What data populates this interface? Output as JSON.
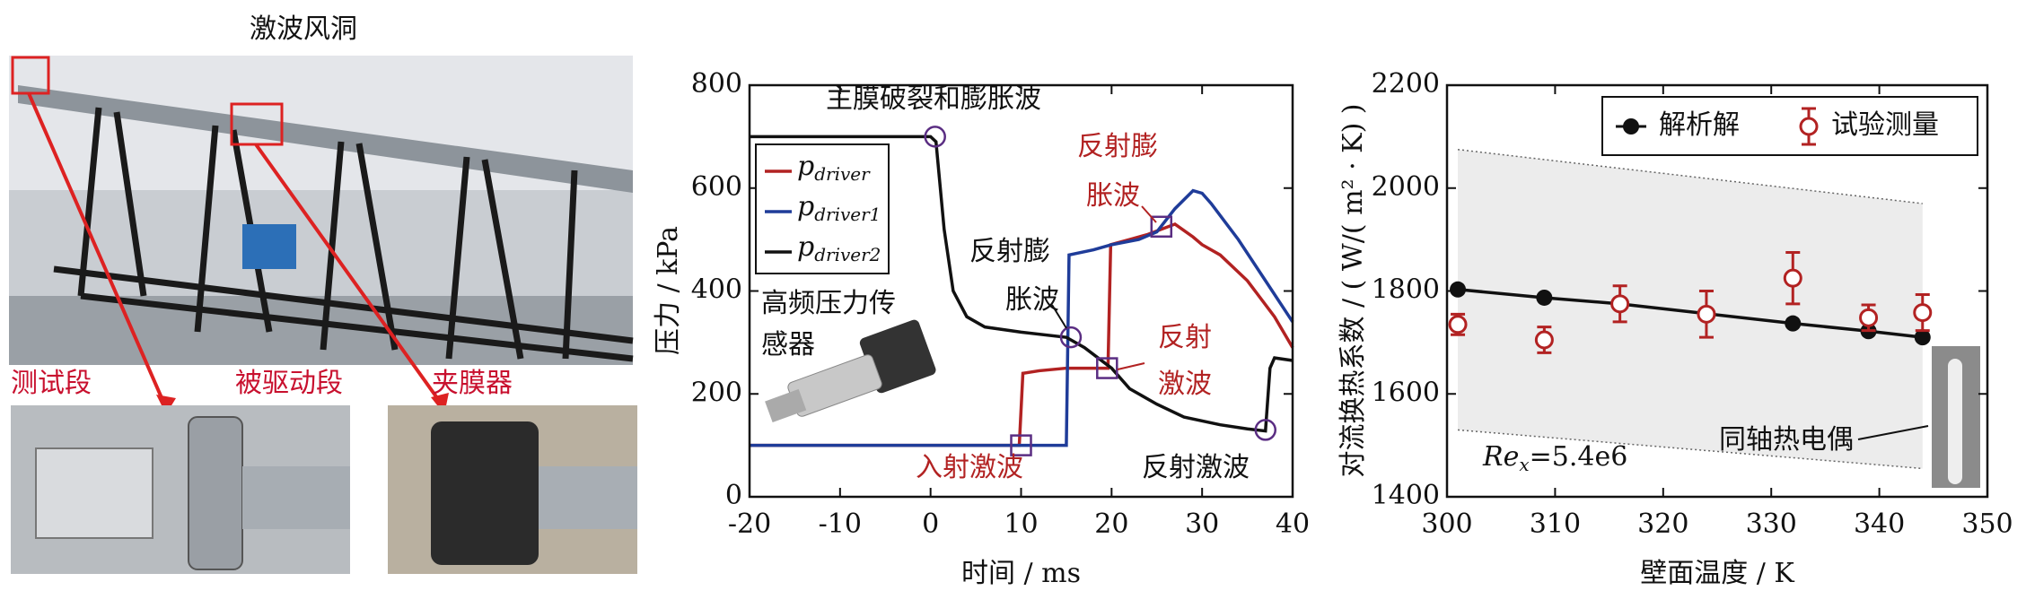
{
  "photo_panel": {
    "title": "激波风洞",
    "labels": [
      "测试段",
      "被驱动段",
      "夹膜器"
    ]
  },
  "chart_data": [
    {
      "type": "line",
      "xlabel": "时间 / ms",
      "ylabel": "压力 / kPa",
      "xlim": [
        -20,
        40
      ],
      "xticks": [
        -20,
        -10,
        0,
        10,
        20,
        30,
        40
      ],
      "ylim": [
        0,
        800
      ],
      "yticks": [
        0,
        200,
        400,
        600,
        800
      ],
      "legend": "upper left",
      "series": [
        {
          "name": "pdriver",
          "color": "#b22222",
          "x": [
            -20,
            9.8,
            10.2,
            12,
            15,
            19.6,
            19.9,
            22,
            24,
            27,
            29,
            30,
            32,
            35,
            38,
            40
          ],
          "values": [
            100,
            100,
            240,
            245,
            250,
            250,
            490,
            500,
            510,
            530,
            505,
            490,
            470,
            420,
            350,
            290
          ]
        },
        {
          "name": "pdriver1",
          "color": "#1f3c99",
          "x": [
            -20,
            0,
            10,
            15,
            15.3,
            18,
            20,
            23,
            25,
            27,
            29,
            30,
            31,
            34,
            37,
            40
          ],
          "values": [
            100,
            100,
            100,
            100,
            470,
            480,
            490,
            500,
            515,
            560,
            595,
            590,
            570,
            500,
            420,
            340
          ]
        },
        {
          "name": "pdriver2",
          "color": "#111111",
          "x": [
            -20,
            -5,
            0,
            0.6,
            1.5,
            2.5,
            4,
            6,
            10,
            15,
            17,
            20,
            22,
            25,
            28,
            32,
            35,
            37,
            37.5,
            38,
            40
          ],
          "values": [
            700,
            700,
            700,
            690,
            520,
            400,
            350,
            330,
            320,
            310,
            290,
            250,
            210,
            180,
            155,
            140,
            132,
            128,
            250,
            270,
            265
          ]
        }
      ],
      "highlight_points": [
        {
          "x": 0.5,
          "y": 700,
          "shape": "circle"
        },
        {
          "x": 15.5,
          "y": 310,
          "shape": "circle"
        },
        {
          "x": 37,
          "y": 130,
          "shape": "circle"
        },
        {
          "x": 10,
          "y": 100,
          "shape": "square"
        },
        {
          "x": 19.5,
          "y": 250,
          "shape": "square"
        },
        {
          "x": 25.5,
          "y": 525,
          "shape": "square"
        }
      ],
      "annotations": [
        {
          "lines": [
            "主膜破裂和膨胀波"
          ],
          "color": "#111111"
        },
        {
          "lines": [
            "反射膨",
            "胀波"
          ],
          "color": "#b22222"
        },
        {
          "lines": [
            "反射膨",
            "胀波"
          ],
          "color": "#111111"
        },
        {
          "lines": [
            "反射",
            "激波"
          ],
          "color": "#b22222"
        },
        {
          "lines": [
            "入射激波"
          ],
          "color": "#b22222"
        },
        {
          "lines": [
            "反射激波"
          ],
          "color": "#111111"
        },
        {
          "lines": [
            "高频压力传",
            "感器"
          ],
          "color": "#111111"
        }
      ]
    },
    {
      "type": "scatter",
      "xlabel": "壁面温度 / K",
      "ylabel": "对流换热系数 / ( W/( m² · K) )",
      "xlim": [
        300,
        350
      ],
      "xticks": [
        300,
        310,
        320,
        330,
        340,
        350
      ],
      "ylim": [
        1400,
        2200
      ],
      "yticks": [
        1400,
        1600,
        1800,
        2000,
        2200
      ],
      "legend": "upper right",
      "band": {
        "x": [
          301,
          344
        ],
        "upper": [
          2075,
          1970
        ],
        "lower": [
          1530,
          1455
        ]
      },
      "series": [
        {
          "name": "解析解",
          "color": "#111111",
          "style": "line-marker",
          "x": [
            301,
            309,
            316,
            324,
            332,
            339,
            344
          ],
          "values": [
            1803,
            1787,
            1775,
            1756,
            1737,
            1722,
            1710
          ]
        },
        {
          "name": "试验测量",
          "color": "#b22222",
          "style": "errorbar",
          "x": [
            301,
            309,
            316,
            324,
            332,
            339,
            344
          ],
          "values": [
            1735,
            1705,
            1775,
            1755,
            1825,
            1748,
            1758
          ],
          "errors": [
            20,
            25,
            35,
            45,
            50,
            25,
            35
          ]
        }
      ],
      "annotations": [
        {
          "lines": [
            "Rex=5.4e6"
          ],
          "color": "#111111"
        },
        {
          "lines": [
            "同轴热电偶"
          ],
          "color": "#111111"
        }
      ]
    }
  ]
}
